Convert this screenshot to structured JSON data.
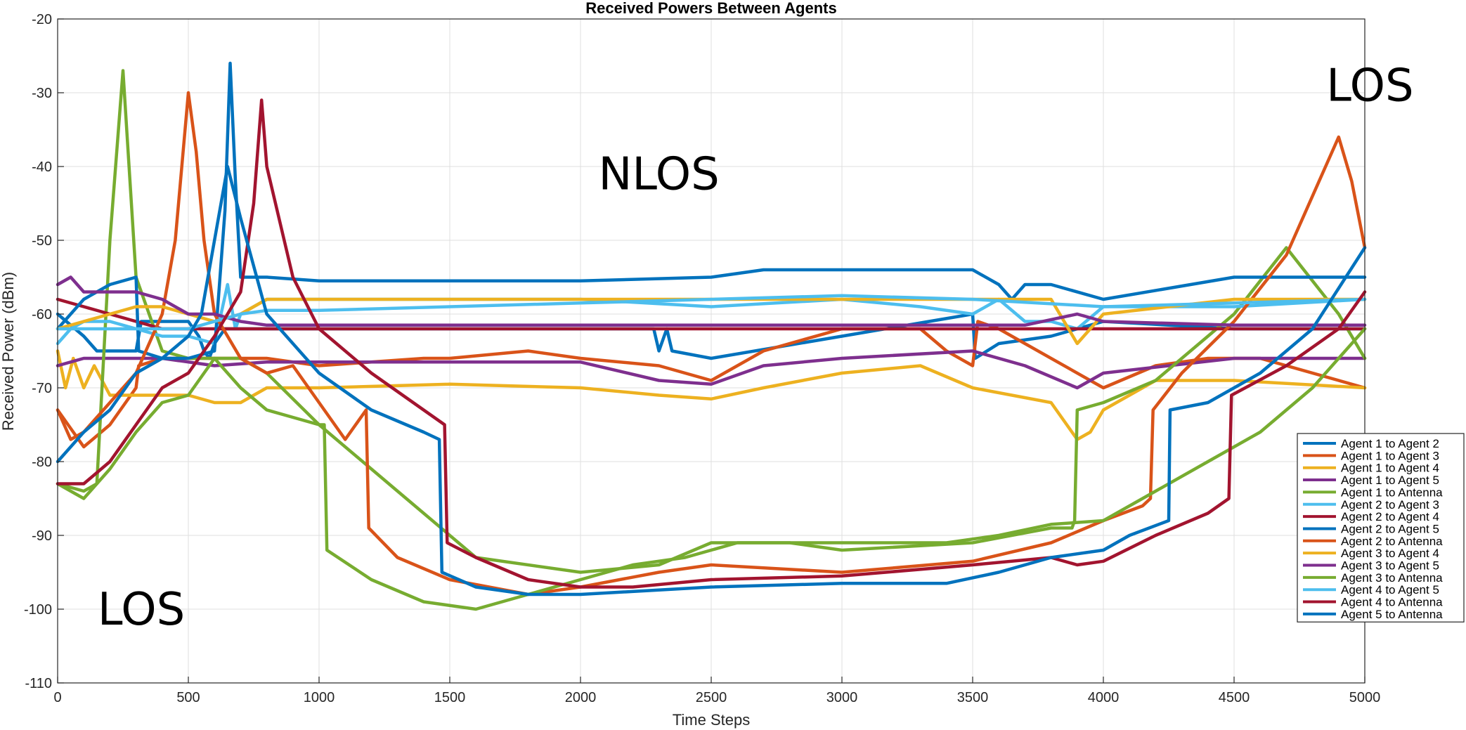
{
  "chart_data": {
    "type": "line",
    "title": "Received Powers Between Agents",
    "xlabel": "Time Steps",
    "ylabel": "Received Power (dBm)",
    "xlim": [
      0,
      5000
    ],
    "ylim": [
      -110,
      -20
    ],
    "xticks": [
      0,
      500,
      1000,
      1500,
      2000,
      2500,
      3000,
      3500,
      4000,
      4500,
      5000
    ],
    "yticks": [
      -110,
      -100,
      -90,
      -80,
      -70,
      -60,
      -50,
      -40,
      -30,
      -20
    ],
    "grid": true,
    "legend_position": "bottom-right",
    "annotations": [
      {
        "text": "LOS",
        "x": 320,
        "y": -100
      },
      {
        "text": "NLOS",
        "x": 2300,
        "y": -41
      },
      {
        "text": "LOS",
        "x": 5020,
        "y": -29
      }
    ],
    "series": [
      {
        "name": "Agent 1 to Agent 2",
        "color": "#0072BD",
        "x": [
          0,
          100,
          150,
          300,
          320,
          500,
          540,
          560,
          580,
          600,
          620,
          640,
          700,
          800,
          1000,
          2000,
          2280,
          2300,
          2330,
          2350,
          2500,
          3000,
          3500,
          3510,
          3600,
          3800,
          4000,
          4500,
          5000
        ],
        "y": [
          -60,
          -63,
          -65,
          -65,
          -61,
          -61,
          -63,
          -65,
          -66,
          -64,
          -63,
          -62,
          -62,
          -62,
          -62,
          -62,
          -62,
          -65,
          -62,
          -65,
          -66,
          -63,
          -60,
          -66,
          -64,
          -63,
          -61,
          -62,
          -62
        ]
      },
      {
        "name": "Agent 1 to Agent 3",
        "color": "#D95319",
        "x": [
          0,
          100,
          200,
          300,
          310,
          400,
          600,
          700,
          800,
          1000,
          1400,
          1500,
          1800,
          2000,
          2300,
          2500,
          2700,
          3000,
          3300,
          3400,
          3500,
          3520,
          3600,
          4000,
          4200,
          4400,
          4600,
          5000
        ],
        "y": [
          -73,
          -78,
          -75,
          -70,
          -67,
          -66,
          -66,
          -66,
          -66,
          -67,
          -66,
          -66,
          -65,
          -66,
          -67,
          -69,
          -65,
          -62,
          -62,
          -65,
          -67,
          -61,
          -62,
          -70,
          -67,
          -66,
          -66,
          -70
        ]
      },
      {
        "name": "Agent 1 to Agent 4",
        "color": "#EDB120",
        "x": [
          0,
          30,
          60,
          100,
          140,
          200,
          400,
          500,
          600,
          700,
          800,
          1000,
          1500,
          2000,
          2300,
          2500,
          2700,
          3000,
          3300,
          3500,
          3800,
          3900,
          3950,
          4000,
          4200,
          4500,
          5000
        ],
        "y": [
          -65,
          -70,
          -66,
          -70,
          -67,
          -71,
          -71,
          -71,
          -72,
          -72,
          -70,
          -70,
          -69.5,
          -70,
          -71,
          -71.5,
          -70,
          -68,
          -67,
          -70,
          -72,
          -77,
          -76,
          -73,
          -69,
          -69,
          -70
        ]
      },
      {
        "name": "Agent 1 to Agent 5",
        "color": "#7E2F8E",
        "x": [
          0,
          100,
          200,
          300,
          400,
          600,
          800,
          1000,
          1500,
          2000,
          2300,
          2500,
          2700,
          3000,
          3500,
          3700,
          3900,
          4000,
          4500,
          5000
        ],
        "y": [
          -67,
          -66,
          -66,
          -66,
          -66,
          -67,
          -66.5,
          -66.5,
          -66.5,
          -66.5,
          -69,
          -69.5,
          -67,
          -66,
          -65,
          -67,
          -70,
          -68,
          -66,
          -66
        ]
      },
      {
        "name": "Agent 1 to Antenna",
        "color": "#77AC30",
        "x": [
          0,
          100,
          150,
          200,
          250,
          300,
          400,
          500,
          600,
          700,
          800,
          1000,
          1300,
          1600,
          2000,
          2300,
          2500,
          2800,
          3000,
          3500,
          3800,
          3880,
          3890,
          3900,
          4000,
          4200,
          4500,
          4700,
          4900,
          5000
        ],
        "y": [
          -83,
          -84,
          -83,
          -50,
          -27,
          -55,
          -65,
          -66,
          -66,
          -66,
          -68,
          -75,
          -84,
          -93,
          -95,
          -94,
          -91,
          -91,
          -92,
          -91,
          -89,
          -89,
          -88,
          -73,
          -72,
          -69,
          -60,
          -51,
          -60,
          -66
        ]
      },
      {
        "name": "Agent 2 to Agent 3",
        "color": "#4DBEEE",
        "x": [
          0,
          50,
          100,
          200,
          300,
          400,
          500,
          600,
          650,
          680,
          700,
          800,
          1000,
          1500,
          2000,
          2500,
          3000,
          3300,
          3500,
          3600,
          3700,
          3800,
          3900,
          4000,
          4500,
          5000
        ],
        "y": [
          -64,
          -62,
          -61,
          -61,
          -62,
          -63,
          -63,
          -64,
          -56,
          -62,
          -60,
          -58,
          -58,
          -58,
          -58,
          -59,
          -58,
          -59,
          -60,
          -58,
          -61,
          -61,
          -62,
          -59,
          -59,
          -58
        ]
      },
      {
        "name": "Agent 2 to Agent 4",
        "color": "#A2142F",
        "x": [
          0,
          100,
          200,
          300,
          400,
          500,
          600,
          700,
          800,
          1000,
          1500,
          2000,
          2500,
          3000,
          3500,
          3700,
          4000,
          4500,
          5000
        ],
        "y": [
          -58,
          -59,
          -60,
          -61,
          -62,
          -62,
          -62,
          -62,
          -62,
          -62,
          -62,
          -62,
          -62,
          -62,
          -62,
          -62,
          -62,
          -62,
          -62
        ]
      },
      {
        "name": "Agent 2 to Agent 5",
        "color": "#0072BD",
        "x": [
          0,
          100,
          200,
          300,
          310,
          400,
          500,
          600,
          640,
          660,
          680,
          700,
          800,
          1000,
          1500,
          2000,
          2500,
          2700,
          3000,
          3300,
          3400,
          3500,
          3600,
          3650,
          3700,
          3800,
          4000,
          4500,
          5000
        ],
        "y": [
          -62,
          -58,
          -56,
          -55,
          -65,
          -66,
          -66,
          -65,
          -46,
          -26,
          -42,
          -55,
          -55,
          -55.5,
          -55.5,
          -55.5,
          -55,
          -54,
          -54,
          -54,
          -54,
          -54,
          -56,
          -58,
          -56,
          -56,
          -58,
          -55,
          -55
        ]
      },
      {
        "name": "Agent 2 to Antenna",
        "color": "#D95319",
        "x": [
          0,
          50,
          100,
          200,
          300,
          400,
          450,
          500,
          530,
          560,
          600,
          700,
          800,
          900,
          1000,
          1100,
          1180,
          1190,
          1300,
          1500,
          1800,
          2000,
          2300,
          2500,
          3000,
          3500,
          3800,
          4000,
          4150,
          4180,
          4190,
          4300,
          4500,
          4700,
          4850,
          4900,
          4950,
          5000
        ],
        "y": [
          -73,
          -77,
          -76,
          -72,
          -68,
          -60,
          -50,
          -30,
          -38,
          -50,
          -60,
          -66,
          -68,
          -67,
          -72,
          -77,
          -73,
          -89,
          -93,
          -96,
          -98,
          -97,
          -95,
          -94,
          -95,
          -93.5,
          -91,
          -88,
          -86,
          -85,
          -73,
          -68,
          -61,
          -52,
          -40,
          -36,
          -42,
          -51
        ]
      },
      {
        "name": "Agent 3 to Agent 4",
        "color": "#EDB120",
        "x": [
          0,
          100,
          200,
          300,
          400,
          500,
          600,
          700,
          800,
          1000,
          1500,
          2000,
          2500,
          3000,
          3500,
          3800,
          3900,
          4000,
          4500,
          4900,
          5000
        ],
        "y": [
          -62,
          -61,
          -60,
          -59,
          -59,
          -60,
          -61,
          -60,
          -58,
          -58,
          -58,
          -58,
          -58,
          -58,
          -58,
          -58,
          -64,
          -60,
          -58,
          -58,
          -58
        ]
      },
      {
        "name": "Agent 3 to Agent 5",
        "color": "#7E2F8E",
        "x": [
          0,
          50,
          100,
          200,
          300,
          400,
          500,
          600,
          700,
          800,
          1000,
          1500,
          2000,
          2500,
          3000,
          3500,
          3700,
          3900,
          4000,
          4500,
          5000
        ],
        "y": [
          -56,
          -55,
          -57,
          -57,
          -57,
          -58,
          -60,
          -60,
          -61,
          -61.5,
          -61.5,
          -61.5,
          -61.5,
          -61.5,
          -61.5,
          -61.5,
          -61.5,
          -60,
          -61,
          -61.5,
          -61.5
        ]
      },
      {
        "name": "Agent 3 to Antenna",
        "color": "#77AC30",
        "x": [
          0,
          100,
          200,
          300,
          400,
          500,
          600,
          700,
          800,
          900,
          1000,
          1020,
          1030,
          1200,
          1400,
          1600,
          1800,
          2000,
          2200,
          2400,
          2600,
          3000,
          3400,
          3600,
          3800,
          4000,
          4200,
          4400,
          4600,
          4800,
          5000
        ],
        "y": [
          -83,
          -85,
          -81,
          -76,
          -72,
          -71,
          -66,
          -70,
          -73,
          -74,
          -75,
          -75,
          -92,
          -96,
          -99,
          -100,
          -98,
          -96,
          -94,
          -93,
          -91,
          -91,
          -91,
          -90,
          -88.5,
          -88,
          -84,
          -80,
          -76,
          -70,
          -62
        ]
      },
      {
        "name": "Agent 4 to Agent 5",
        "color": "#4DBEEE",
        "x": [
          0,
          100,
          200,
          300,
          400,
          500,
          600,
          700,
          800,
          1000,
          1500,
          2000,
          2500,
          3000,
          3500,
          4000,
          4500,
          5000
        ],
        "y": [
          -62,
          -62,
          -62,
          -62,
          -62,
          -62,
          -61,
          -60,
          -59.5,
          -59.5,
          -59,
          -58.5,
          -58,
          -57.5,
          -58,
          -59,
          -58.5,
          -58
        ]
      },
      {
        "name": "Agent 4 to Antenna",
        "color": "#A2142F",
        "x": [
          0,
          100,
          200,
          300,
          400,
          500,
          600,
          650,
          700,
          750,
          780,
          800,
          900,
          1000,
          1200,
          1400,
          1480,
          1490,
          1600,
          1800,
          2000,
          2200,
          2500,
          3000,
          3500,
          3800,
          3900,
          4000,
          4200,
          4400,
          4480,
          4490,
          4700,
          4900,
          5000
        ],
        "y": [
          -83,
          -83,
          -80,
          -75,
          -70,
          -68,
          -63,
          -60,
          -57,
          -45,
          -31,
          -40,
          -55,
          -62,
          -68,
          -73,
          -75,
          -91,
          -93,
          -96,
          -97,
          -97,
          -96,
          -95.5,
          -94,
          -93,
          -94,
          -93.5,
          -90,
          -87,
          -85,
          -71,
          -67,
          -62,
          -57
        ]
      },
      {
        "name": "Agent 5 to Antenna",
        "color": "#0072BD",
        "x": [
          0,
          100,
          200,
          300,
          400,
          500,
          550,
          600,
          650,
          700,
          800,
          1000,
          1200,
          1400,
          1460,
          1470,
          1600,
          1800,
          2000,
          2500,
          3000,
          3400,
          3600,
          3800,
          4000,
          4100,
          4250,
          4255,
          4400,
          4600,
          4800,
          5000
        ],
        "y": [
          -80,
          -76,
          -73,
          -68,
          -66,
          -63,
          -60,
          -50,
          -40,
          -47,
          -60,
          -68,
          -73,
          -76,
          -77,
          -95,
          -97,
          -98,
          -98,
          -97,
          -96.5,
          -96.5,
          -95,
          -93,
          -92,
          -90,
          -88,
          -73,
          -72,
          -68,
          -62,
          -51
        ]
      }
    ]
  }
}
